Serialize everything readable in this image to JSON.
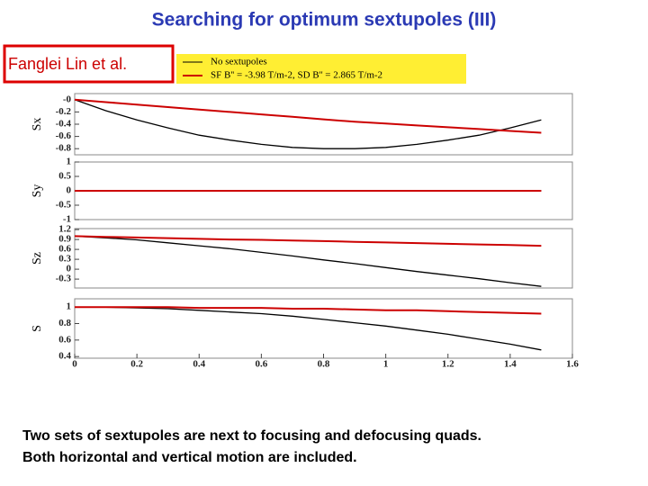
{
  "title": "Searching for optimum sextupoles (III)",
  "author": "Fanglei Lin et al.",
  "caption": [
    "Two sets of sextupoles are next to focusing and defocusing quads.",
    "Both horizontal and vertical motion are included."
  ],
  "chart_data": [
    {
      "type": "line",
      "y_label": "Sx",
      "x": [
        0,
        0.1,
        0.2,
        0.3,
        0.4,
        0.5,
        0.6,
        0.7,
        0.8,
        0.9,
        1.0,
        1.1,
        1.2,
        1.3,
        1.4,
        1.5
      ],
      "xlim": [
        0,
        1.6
      ],
      "ylim": [
        -0.9,
        0.1
      ],
      "yticks": [
        {
          "value": 0,
          "label": "-0"
        },
        -0.2,
        -0.4,
        -0.6,
        -0.8
      ],
      "series": [
        {
          "name": "No sextupoles",
          "color": "#000000",
          "values": [
            0,
            -0.18,
            -0.33,
            -0.46,
            -0.58,
            -0.66,
            -0.73,
            -0.78,
            -0.8,
            -0.8,
            -0.78,
            -0.73,
            -0.66,
            -0.58,
            -0.46,
            -0.33
          ]
        },
        {
          "name": "SF B'' = -3.98 T/m-2, SD B'' = 2.865 T/m-2",
          "color": "#cc0000",
          "values": [
            0,
            -0.04,
            -0.08,
            -0.12,
            -0.16,
            -0.2,
            -0.24,
            -0.28,
            -0.32,
            -0.36,
            -0.39,
            -0.42,
            -0.45,
            -0.48,
            -0.51,
            -0.54
          ]
        }
      ]
    },
    {
      "type": "line",
      "y_label": "Sy",
      "x": [
        0,
        0.1,
        0.2,
        0.3,
        0.4,
        0.5,
        0.6,
        0.7,
        0.8,
        0.9,
        1.0,
        1.1,
        1.2,
        1.3,
        1.4,
        1.5
      ],
      "xlim": [
        0,
        1.6
      ],
      "ylim": [
        -1,
        1
      ],
      "yticks": [
        1,
        0.5,
        0,
        -0.5,
        -1
      ],
      "series": [
        {
          "color": "#000000",
          "values": [
            0,
            0,
            0,
            0,
            0,
            0,
            0,
            0,
            0,
            0,
            0,
            0,
            0,
            0,
            0,
            0
          ]
        },
        {
          "color": "#cc0000",
          "values": [
            0,
            0,
            0,
            0,
            0,
            0,
            0,
            0,
            0,
            0,
            0,
            0,
            0,
            0,
            0,
            0
          ]
        }
      ]
    },
    {
      "type": "line",
      "y_label": "Sz",
      "x": [
        0,
        0.1,
        0.2,
        0.3,
        0.4,
        0.5,
        0.6,
        0.7,
        0.8,
        0.9,
        1.0,
        1.1,
        1.2,
        1.3,
        1.4,
        1.5
      ],
      "xlim": [
        0,
        1.6
      ],
      "ylim": [
        -0.57,
        1.23
      ],
      "yticks": [
        1.2,
        0.9,
        0.6,
        0.3,
        0,
        -0.3
      ],
      "series": [
        {
          "color": "#000000",
          "values": [
            1.0,
            0.95,
            0.89,
            0.8,
            0.71,
            0.62,
            0.51,
            0.4,
            0.28,
            0.17,
            0.05,
            -0.07,
            -0.18,
            -0.29,
            -0.41,
            -0.52
          ]
        },
        {
          "color": "#cc0000",
          "values": [
            1.0,
            0.98,
            0.96,
            0.94,
            0.92,
            0.9,
            0.89,
            0.87,
            0.85,
            0.83,
            0.81,
            0.79,
            0.77,
            0.75,
            0.73,
            0.71
          ]
        }
      ]
    },
    {
      "type": "line",
      "y_label": "S",
      "x": [
        0,
        0.1,
        0.2,
        0.3,
        0.4,
        0.5,
        0.6,
        0.7,
        0.8,
        0.9,
        1.0,
        1.1,
        1.2,
        1.3,
        1.4,
        1.5
      ],
      "xlim": [
        0,
        1.6
      ],
      "ylim": [
        0.38,
        1.1
      ],
      "yticks": [
        1,
        0.8,
        0.6,
        0.4
      ],
      "xticks": [
        0,
        0.2,
        0.4,
        0.6,
        0.8,
        1,
        1.2,
        1.4,
        1.6
      ],
      "series": [
        {
          "color": "#000000",
          "values": [
            1.0,
            0.998,
            0.99,
            0.98,
            0.96,
            0.94,
            0.92,
            0.89,
            0.85,
            0.81,
            0.77,
            0.72,
            0.67,
            0.61,
            0.55,
            0.48
          ]
        },
        {
          "color": "#cc0000",
          "values": [
            1.0,
            1.0,
            1.0,
            1.0,
            0.99,
            0.99,
            0.99,
            0.98,
            0.98,
            0.97,
            0.96,
            0.96,
            0.95,
            0.94,
            0.93,
            0.92
          ]
        }
      ]
    }
  ]
}
